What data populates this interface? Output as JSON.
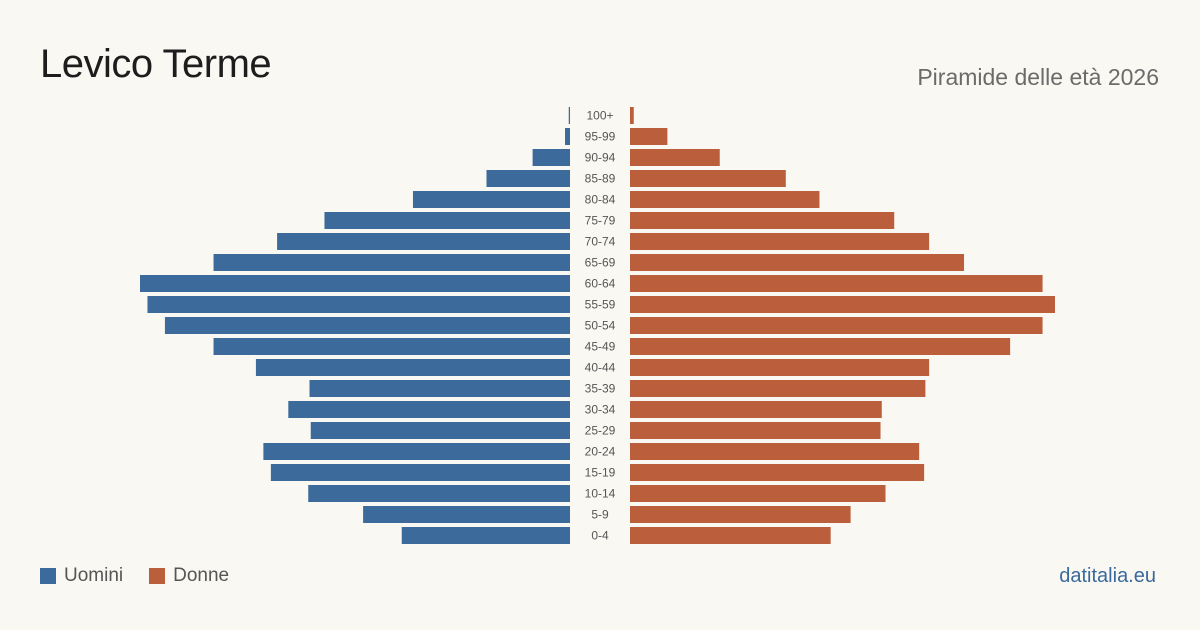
{
  "header": {
    "title": "Levico Terme",
    "subtitle": "Piramide delle età 2026"
  },
  "legend": {
    "men_label": "Uomini",
    "women_label": "Donne"
  },
  "footer": {
    "brand": "datitalia.eu"
  },
  "colors": {
    "men": "#3b6a9b",
    "women": "#ba5e3c",
    "background": "#faf8f3"
  },
  "chart_data": {
    "type": "bar",
    "orientation": "horizontal-pyramid",
    "categories": [
      "100+",
      "95-99",
      "90-94",
      "85-89",
      "80-84",
      "75-79",
      "70-74",
      "65-69",
      "60-64",
      "55-59",
      "50-54",
      "45-49",
      "40-44",
      "35-39",
      "30-34",
      "25-29",
      "20-24",
      "15-19",
      "10-14",
      "5-9",
      "0-4"
    ],
    "series": [
      {
        "name": "Uomini",
        "values": [
          1,
          4,
          30,
          67,
          126,
          197,
          235,
          286,
          345,
          339,
          325,
          286,
          252,
          209,
          226,
          208,
          246,
          240,
          210,
          166,
          135
        ]
      },
      {
        "name": "Donne",
        "values": [
          3,
          30,
          72,
          125,
          152,
          212,
          240,
          268,
          331,
          341,
          331,
          305,
          240,
          237,
          202,
          201,
          232,
          236,
          205,
          177,
          161
        ]
      }
    ],
    "legend_position": "bottom-left",
    "grid": false
  }
}
